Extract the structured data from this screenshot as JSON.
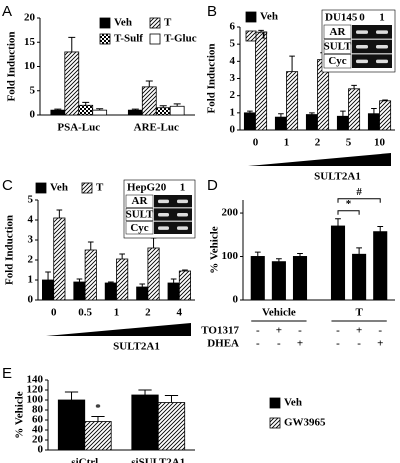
{
  "chart_data": [
    {
      "type": "bar",
      "panel": "A",
      "ylabel": "Fold Induction",
      "categories": [
        "PSA-Luc",
        "ARE-Luc"
      ],
      "series": [
        {
          "name": "Veh",
          "color": "#000000",
          "pattern": "solid",
          "values": [
            1,
            1
          ],
          "errors": [
            0.2,
            0.2
          ]
        },
        {
          "name": "T",
          "color": "#000000",
          "pattern": "diagonal",
          "values": [
            13,
            5.8
          ],
          "errors": [
            3,
            1.2
          ]
        },
        {
          "name": "T-Sulf",
          "color": "#000000",
          "pattern": "checker",
          "values": [
            2,
            1.5
          ],
          "errors": [
            0.6,
            0.4
          ]
        },
        {
          "name": "T-Gluc",
          "color": "#000000",
          "pattern": "open",
          "values": [
            1,
            1.8
          ],
          "errors": [
            0.3,
            0.5
          ]
        }
      ],
      "ylim": [
        0,
        20
      ],
      "yticks": [
        0,
        5,
        10,
        15,
        20
      ],
      "legend": "top-right"
    },
    {
      "type": "bar",
      "panel": "B",
      "ylabel": "Fold Induction",
      "xlabel": "SULT2A1",
      "categories": [
        "0",
        "1",
        "2",
        "5",
        "10"
      ],
      "series": [
        {
          "name": "Veh",
          "color": "#000000",
          "pattern": "solid",
          "values": [
            1,
            0.75,
            0.9,
            0.8,
            0.95
          ],
          "errors": [
            0.1,
            0.2,
            0.1,
            0.3,
            0.3
          ]
        },
        {
          "name": "T",
          "color": "#000000",
          "pattern": "diagonal",
          "values": [
            5.7,
            3.4,
            4.1,
            2.4,
            1.7
          ],
          "errors": [
            0.1,
            0.9,
            0.4,
            0.2,
            0.05
          ]
        }
      ],
      "ylim": [
        0,
        6
      ],
      "yticks": [
        0,
        1,
        2,
        3,
        4,
        5,
        6
      ],
      "legend": "top-left",
      "inset": {
        "title": "DU145",
        "lanes": [
          "0",
          "1"
        ],
        "rows": [
          "AR",
          "SULT",
          "Cyc"
        ]
      }
    },
    {
      "type": "bar",
      "panel": "C",
      "ylabel": "Fold Induction",
      "xlabel": "SULT2A1",
      "categories": [
        "0",
        "0.5",
        "1",
        "2",
        "4"
      ],
      "series": [
        {
          "name": "Veh",
          "color": "#000000",
          "pattern": "solid",
          "values": [
            1,
            0.9,
            0.85,
            0.65,
            0.85
          ],
          "errors": [
            0.4,
            0.15,
            0.05,
            0.15,
            0.2
          ]
        },
        {
          "name": "T",
          "color": "#000000",
          "pattern": "diagonal",
          "values": [
            4.1,
            2.5,
            2.05,
            2.6,
            1.45
          ],
          "errors": [
            0.4,
            0.4,
            0.25,
            0.5,
            0.05
          ]
        }
      ],
      "ylim": [
        0,
        5
      ],
      "yticks": [
        0,
        1,
        2,
        3,
        4,
        5
      ],
      "legend": "top-left",
      "inset": {
        "title": "HepG2",
        "lanes": [
          "0",
          "1"
        ],
        "rows": [
          "AR",
          "SULT",
          "Cyc"
        ]
      }
    },
    {
      "type": "bar",
      "panel": "D",
      "ylabel": "% Vehicle",
      "color": "#000000",
      "groups": [
        {
          "name": "Vehicle",
          "values": [
            100,
            88,
            100
          ],
          "errors": [
            10,
            7,
            7
          ]
        },
        {
          "name": "T",
          "values": [
            170,
            105,
            157
          ],
          "errors": [
            17,
            15,
            12
          ]
        }
      ],
      "treatments": [
        {
          "name": "TO1317",
          "signs": [
            "-",
            "+",
            "-",
            "-",
            "+",
            "-"
          ]
        },
        {
          "name": "DHEA",
          "signs": [
            "-",
            "-",
            "+",
            "-",
            "-",
            "+"
          ]
        }
      ],
      "annotations": [
        {
          "text": "*",
          "group": 1,
          "bars": [
            0,
            1
          ]
        },
        {
          "text": "#",
          "group": 1,
          "bars": [
            0,
            2
          ]
        }
      ],
      "ylim": [
        0,
        230
      ],
      "yticks": [
        0,
        100,
        200
      ]
    },
    {
      "type": "bar",
      "panel": "E",
      "ylabel": "% Vehicle",
      "categories": [
        "siCtrl",
        "siSULT2A1"
      ],
      "series": [
        {
          "name": "Veh",
          "color": "#000000",
          "pattern": "solid",
          "values": [
            100,
            110
          ],
          "errors": [
            16,
            10
          ]
        },
        {
          "name": "GW3965",
          "color": "#000000",
          "pattern": "diagonal",
          "values": [
            57,
            95
          ],
          "errors": [
            10,
            14
          ]
        }
      ],
      "annotations": [
        {
          "text": "*",
          "series": 1,
          "category": 0
        }
      ],
      "ylim": [
        0,
        140
      ],
      "yticks": [
        0,
        20,
        40,
        60,
        80,
        100,
        120,
        140
      ],
      "legend": "right"
    }
  ]
}
